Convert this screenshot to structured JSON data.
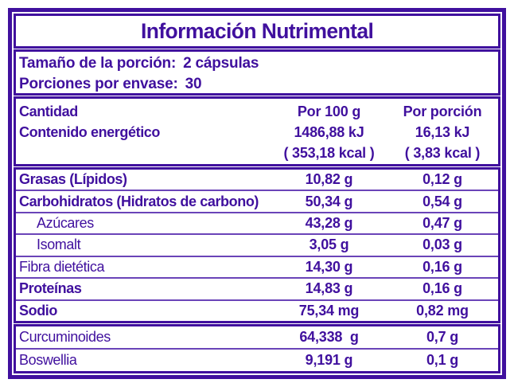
{
  "colors": {
    "purple": "#40109E",
    "divider": "#6A44B8",
    "background": "#FFFFFF"
  },
  "title": "Información Nutrimental",
  "serving": {
    "size_label": "Tamaño de la porción:",
    "size_value": "2 cápsulas",
    "count_label": "Porciones por envase:",
    "count_value": "30"
  },
  "columns": {
    "amount": "Cantidad",
    "per100": "Por 100 g",
    "portion": "Por porción"
  },
  "energy": {
    "label": "Contenido energético",
    "per100_kj": "1486,88 kJ",
    "per100_kcal": "( 353,18 kcal )",
    "portion_kj": "16,13 kJ",
    "portion_kcal": "( 3,83 kcal )"
  },
  "nutrients": [
    {
      "label": "Grasas (Lípidos)",
      "per100": "10,82 g",
      "portion": "0,12 g"
    },
    {
      "label": "Carbohidratos (Hidratos de carbono)",
      "per100": "50,34 g",
      "portion": "0,54 g"
    },
    {
      "label": "Azúcares",
      "per100": "43,28 g",
      "portion": "0,47 g"
    },
    {
      "label": "Isomalt",
      "per100": "3,05 g",
      "portion": "0,03 g"
    },
    {
      "label": "Fibra dietética",
      "per100": "14,30 g",
      "portion": "0,16 g"
    },
    {
      "label": "Proteínas",
      "per100": "14,83 g",
      "portion": "0,16 g"
    },
    {
      "label": "Sodio",
      "per100": "75,34 mg",
      "portion": "0,82 mg"
    }
  ],
  "botanicals": [
    {
      "label": "Curcuminoides",
      "per100": "64,338  g",
      "portion": "0,7 g"
    },
    {
      "label": "Boswellia",
      "per100": "9,191 g",
      "portion": "0,1 g"
    }
  ]
}
